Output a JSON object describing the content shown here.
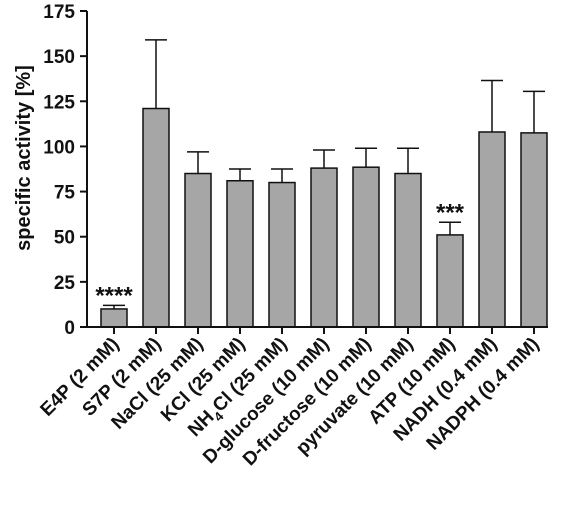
{
  "chart_data": {
    "type": "bar",
    "title": "",
    "xlabel": "",
    "ylabel": "specific activity [%]",
    "ylim": [
      0,
      175
    ],
    "yticks": [
      0,
      25,
      50,
      75,
      100,
      125,
      150,
      175
    ],
    "grid": false,
    "legend": "none",
    "bar_color": "#a6a6a6",
    "categories": [
      {
        "text": "E4P (2 mM)"
      },
      {
        "text": "S7P (2 mM)"
      },
      {
        "text": "NaCl (25 mM)"
      },
      {
        "text": "KCl (25 mM)"
      },
      {
        "text": "NH4Cl (25 mM)",
        "pre": "NH",
        "sub": "4",
        "post": "Cl (25 mM)"
      },
      {
        "text": "D-glucose (10 mM)"
      },
      {
        "text": "D-fructose (10 mM)"
      },
      {
        "text": "pyruvate (10 mM)"
      },
      {
        "text": "ATP (10 mM)"
      },
      {
        "text": "NADH (0.4 mM)"
      },
      {
        "text": "NADPH (0.4 mM)"
      }
    ],
    "values": [
      10,
      121,
      85,
      81,
      80,
      88,
      88.5,
      85,
      51,
      108,
      107.5
    ],
    "error": [
      2,
      38,
      12,
      6.5,
      7.5,
      10,
      10.5,
      14,
      7,
      28.5,
      23
    ],
    "annotations": [
      {
        "index": 0,
        "text": "****"
      },
      {
        "index": 8,
        "text": "***"
      }
    ]
  }
}
